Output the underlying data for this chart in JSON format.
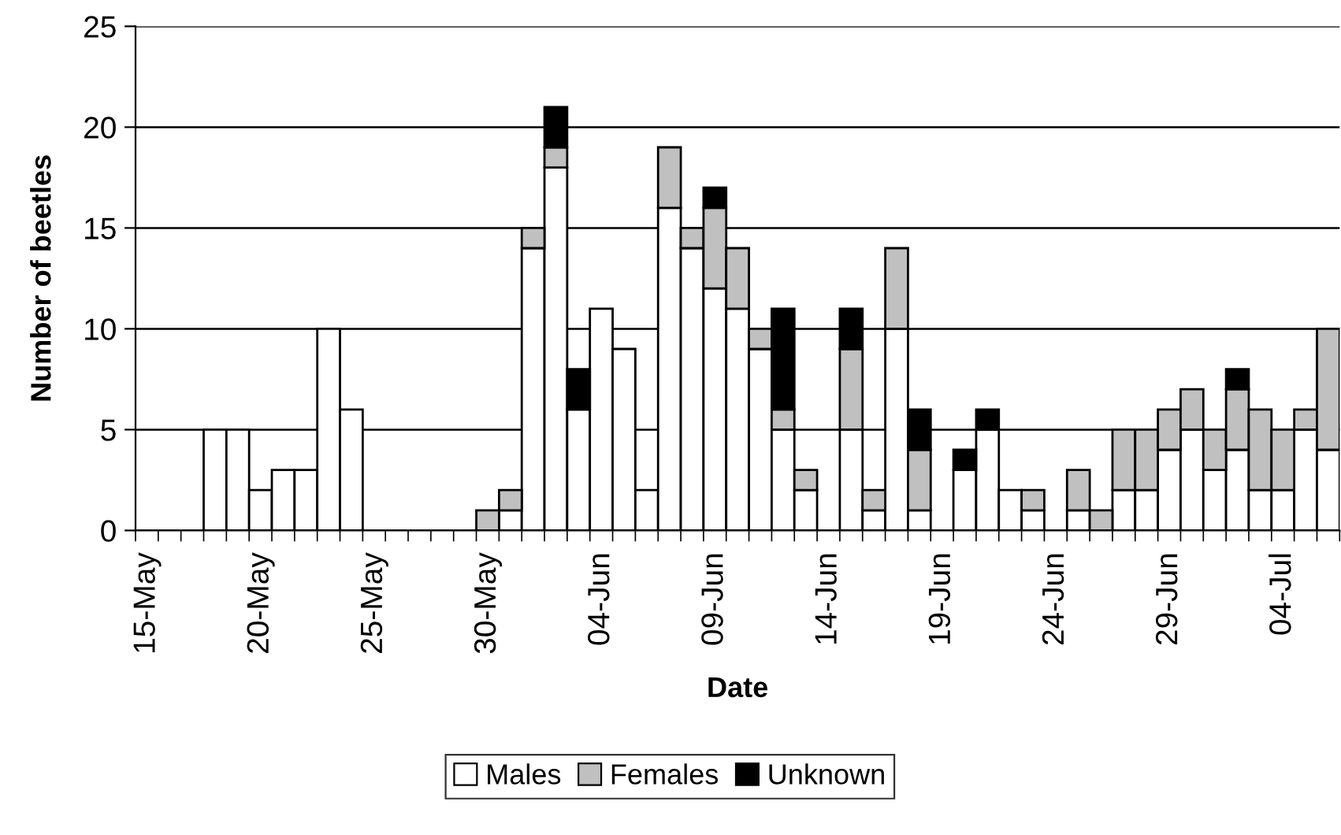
{
  "chart_data": {
    "type": "bar",
    "stacked": true,
    "xlabel": "Date",
    "ylabel": "Number of beetles",
    "categories": [
      "15-May",
      null,
      null,
      null,
      null,
      "20-May",
      null,
      null,
      null,
      null,
      "25-May",
      null,
      null,
      null,
      null,
      "30-May",
      null,
      null,
      null,
      null,
      "04-Jun",
      null,
      null,
      null,
      null,
      "09-Jun",
      null,
      null,
      null,
      null,
      "14-Jun",
      null,
      null,
      null,
      null,
      "19-Jun",
      null,
      null,
      null,
      null,
      "24-Jun",
      null,
      null,
      null,
      null,
      "29-Jun",
      null,
      null,
      null,
      null,
      "04-Jul",
      null,
      null
    ],
    "series": [
      {
        "name": "Males",
        "color": "#ffffff",
        "values": [
          0,
          0,
          0,
          5,
          5,
          2,
          3,
          3,
          10,
          6,
          0,
          0,
          0,
          0,
          0,
          0,
          1,
          14,
          18,
          6,
          11,
          9,
          2,
          16,
          14,
          12,
          11,
          9,
          5,
          2,
          0,
          5,
          1,
          10,
          1,
          0,
          3,
          5,
          2,
          1,
          0,
          1,
          0,
          2,
          2,
          4,
          5,
          3,
          4,
          2,
          2,
          5,
          4
        ]
      },
      {
        "name": "Females",
        "color": "#c0c0c0",
        "values": [
          0,
          0,
          0,
          0,
          0,
          0,
          0,
          0,
          0,
          0,
          0,
          0,
          0,
          0,
          0,
          1,
          1,
          1,
          1,
          0,
          0,
          0,
          0,
          3,
          1,
          4,
          3,
          1,
          1,
          1,
          0,
          4,
          1,
          4,
          3,
          0,
          0,
          0,
          0,
          1,
          0,
          2,
          1,
          3,
          3,
          2,
          2,
          2,
          3,
          4,
          3,
          1,
          6
        ]
      },
      {
        "name": "Unknown",
        "color": "#000000",
        "values": [
          0,
          0,
          0,
          0,
          0,
          0,
          0,
          0,
          0,
          0,
          0,
          0,
          0,
          0,
          0,
          0,
          0,
          0,
          2,
          2,
          0,
          0,
          0,
          0,
          0,
          1,
          0,
          0,
          5,
          0,
          0,
          2,
          0,
          0,
          2,
          0,
          1,
          1,
          0,
          0,
          0,
          0,
          0,
          0,
          0,
          0,
          0,
          0,
          1,
          0,
          0,
          0,
          0
        ]
      }
    ],
    "ylim": [
      0,
      25
    ],
    "yticks": [
      0,
      5,
      10,
      15,
      20,
      25
    ],
    "grid": "y",
    "legend": "bottom"
  }
}
